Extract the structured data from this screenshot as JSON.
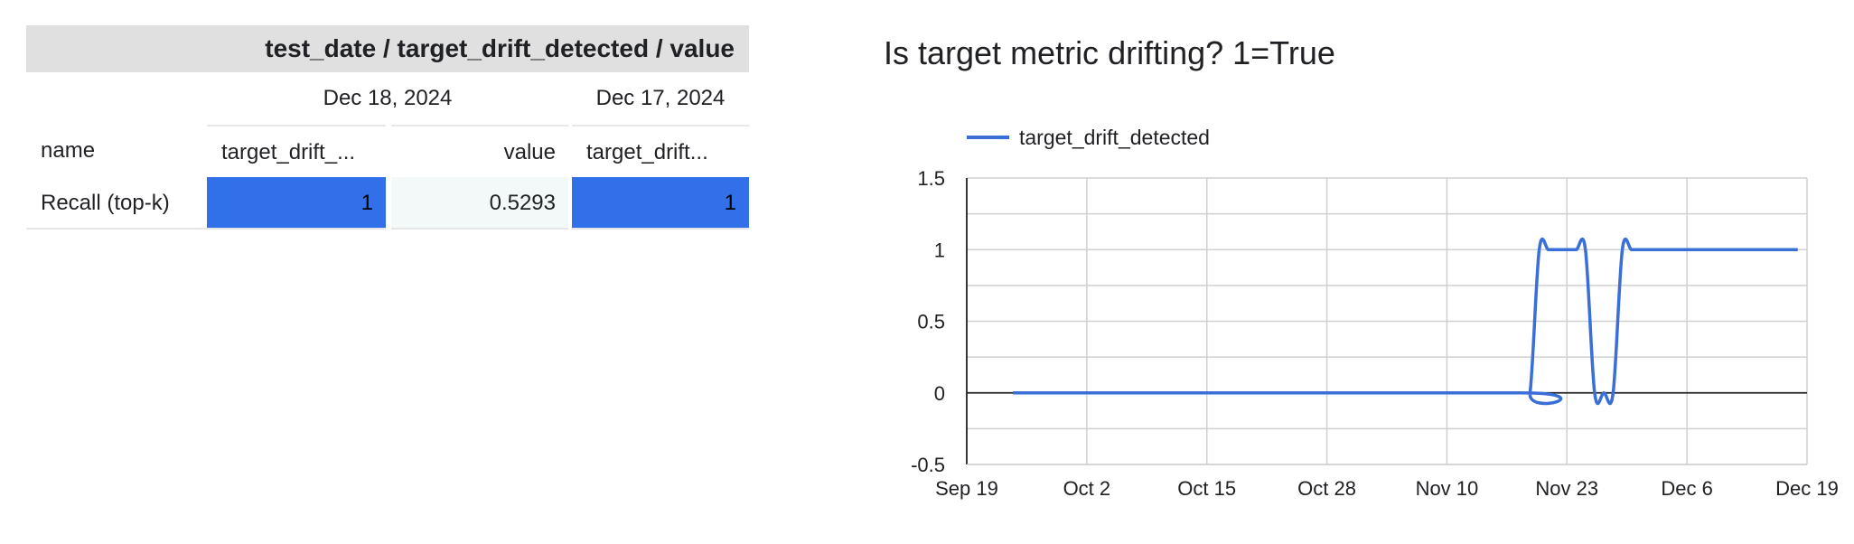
{
  "table": {
    "header": "test_date / target_drift_detected / value",
    "dates": [
      "Dec 18, 2024",
      "Dec 17, 2024"
    ],
    "columns": [
      "name",
      "target_drift_...",
      "value",
      "target_drift..."
    ],
    "rows": [
      {
        "name": "Recall (top-k)",
        "c1": "1",
        "c2": "0.5293",
        "c3": "1"
      }
    ],
    "colors": {
      "heat_full": "#3170e8",
      "heat_light": "#f3f8f8",
      "header_bg": "#e0e0e0"
    }
  },
  "chart_data": {
    "type": "line",
    "title": "Is target metric drifting? 1=True",
    "xlabel": "",
    "ylabel": "",
    "x_ticks": [
      "Sep 19",
      "Oct 2",
      "Oct 15",
      "Oct 28",
      "Nov 10",
      "Nov 23",
      "Dec 6",
      "Dec 19"
    ],
    "x_range": [
      "2024-09-19",
      "2024-12-19"
    ],
    "y_ticks": [
      -0.5,
      0,
      0.5,
      1,
      1.5
    ],
    "ylim": [
      -0.5,
      1.5
    ],
    "grid": true,
    "legend": "top-left",
    "series": [
      {
        "name": "target_drift_detected",
        "color": "#3a6fd8",
        "smooth": true,
        "x": [
          "2024-09-24",
          "2024-11-18",
          "2024-11-19",
          "2024-11-20",
          "2024-11-21",
          "2024-11-22",
          "2024-11-23",
          "2024-11-24",
          "2024-11-25",
          "2024-11-26",
          "2024-11-27",
          "2024-11-28",
          "2024-11-29",
          "2024-11-30",
          "2024-12-01",
          "2024-12-02",
          "2024-12-03",
          "2024-12-18"
        ],
        "values": [
          0,
          0,
          0,
          1,
          1,
          1,
          1,
          1,
          1,
          0,
          0,
          0,
          1,
          1,
          1,
          1,
          1,
          1
        ]
      }
    ]
  }
}
